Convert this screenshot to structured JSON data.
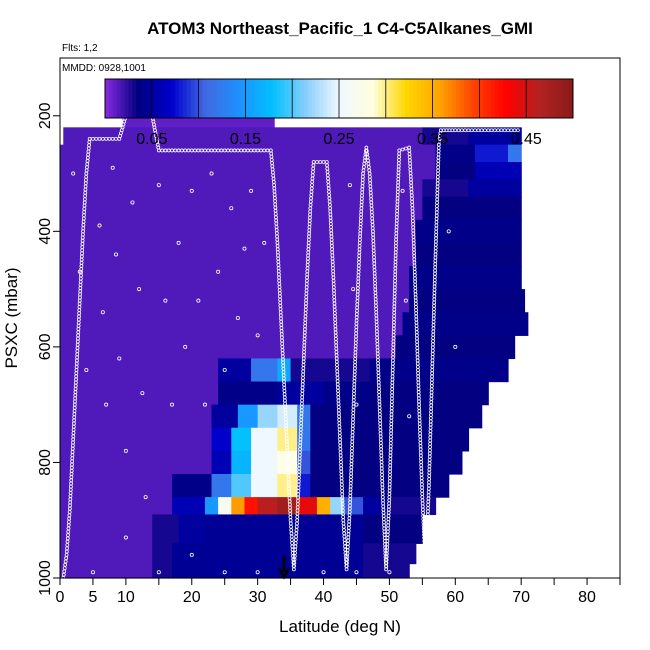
{
  "chart_data": {
    "type": "heatmap",
    "title": "ATOM3 Northeast_Pacific_1 C4-C5Alkanes_GMI",
    "flights_label": "Flts: 1,2",
    "date_label": "MMDD: 0928,1001",
    "xlabel": "Latitude (deg N)",
    "ylabel": "PSXC (mbar)",
    "xlim": [
      0,
      85
    ],
    "ylim": [
      1000,
      100
    ],
    "x_ticks": [
      0,
      5,
      10,
      20,
      30,
      40,
      50,
      60,
      70,
      80
    ],
    "x_minor_ticks": [
      0,
      5,
      10,
      15,
      20,
      25,
      30,
      35,
      40,
      45,
      50,
      55,
      60,
      65,
      70,
      75,
      80,
      85
    ],
    "y_ticks": [
      200,
      400,
      600,
      800,
      1000
    ],
    "colorbar": {
      "vmin": 0,
      "vmax": 0.5,
      "ticks": [
        0.05,
        0.15,
        0.25,
        0.35,
        0.45
      ],
      "tick_labels": [
        "0.05",
        "0.15",
        "0.25",
        "0.35",
        "0.45"
      ],
      "color_stops": [
        "#8a2be2",
        "#000080",
        "#0000cd",
        "#4169e1",
        "#1e90ff",
        "#00bfff",
        "#87cefa",
        "#f0f8ff",
        "#ffffe0",
        "#ffd700",
        "#ffa500",
        "#ff4500",
        "#ff0000",
        "#b22222",
        "#8b1a1a"
      ]
    },
    "background_value": 0.02,
    "marker_latitude": 34,
    "rows": [
      {
        "p": [
          180,
          220
        ],
        "segments": [
          [
            9.5,
            32.5,
            0.01
          ]
        ]
      },
      {
        "p": [
          220,
          250
        ],
        "segments": [
          [
            0.5,
            55,
            0.015
          ],
          [
            55,
            62,
            0.03
          ],
          [
            62,
            70,
            0.05
          ]
        ]
      },
      {
        "p": [
          250,
          280
        ],
        "segments": [
          [
            0,
            57,
            0.015
          ],
          [
            57,
            63,
            0.04
          ],
          [
            63,
            68,
            0.08
          ],
          [
            68,
            70,
            0.12
          ]
        ]
      },
      {
        "p": [
          280,
          310
        ],
        "segments": [
          [
            0,
            57,
            0.015
          ],
          [
            57,
            63,
            0.035
          ],
          [
            63,
            70,
            0.06
          ]
        ]
      },
      {
        "p": [
          310,
          340
        ],
        "segments": [
          [
            0,
            55,
            0.015
          ],
          [
            55,
            62,
            0.03
          ],
          [
            62,
            70,
            0.05
          ]
        ]
      },
      {
        "p": [
          340,
          380
        ],
        "segments": [
          [
            0,
            55,
            0.015
          ],
          [
            55,
            70,
            0.035
          ]
        ]
      },
      {
        "p": [
          380,
          420
        ],
        "segments": [
          [
            0,
            54,
            0.015
          ],
          [
            54,
            70,
            0.04
          ]
        ]
      },
      {
        "p": [
          420,
          460
        ],
        "segments": [
          [
            0,
            54,
            0.015
          ],
          [
            54,
            70,
            0.035
          ]
        ]
      },
      {
        "p": [
          460,
          500
        ],
        "segments": [
          [
            0,
            53,
            0.015
          ],
          [
            53,
            70,
            0.04
          ]
        ]
      },
      {
        "p": [
          500,
          540
        ],
        "segments": [
          [
            0,
            53,
            0.015
          ],
          [
            53,
            70.5,
            0.035
          ]
        ]
      },
      {
        "p": [
          540,
          580
        ],
        "segments": [
          [
            0,
            52,
            0.015
          ],
          [
            52,
            71,
            0.04
          ]
        ]
      },
      {
        "p": [
          580,
          620
        ],
        "segments": [
          [
            0,
            51,
            0.015
          ],
          [
            51,
            69,
            0.035
          ]
        ]
      },
      {
        "p": [
          620,
          660
        ],
        "segments": [
          [
            0,
            24,
            0.015
          ],
          [
            24,
            29,
            0.05
          ],
          [
            29,
            33,
            0.12
          ],
          [
            33,
            35,
            0.16
          ],
          [
            35,
            47,
            0.03
          ],
          [
            47,
            68,
            0.04
          ]
        ]
      },
      {
        "p": [
          660,
          700
        ],
        "segments": [
          [
            0,
            24,
            0.015
          ],
          [
            24,
            33,
            0.04
          ],
          [
            33,
            40,
            0.05
          ],
          [
            40,
            47,
            0.04
          ],
          [
            47,
            65,
            0.035
          ]
        ]
      },
      {
        "p": [
          700,
          740
        ],
        "segments": [
          [
            0,
            23,
            0.015
          ],
          [
            23,
            27,
            0.05
          ],
          [
            27,
            30,
            0.15
          ],
          [
            30,
            33,
            0.22
          ],
          [
            33,
            36,
            0.24
          ],
          [
            36,
            38,
            0.12
          ],
          [
            38,
            64,
            0.035
          ]
        ]
      },
      {
        "p": [
          740,
          780
        ],
        "segments": [
          [
            0,
            23,
            0.015
          ],
          [
            23,
            26,
            0.07
          ],
          [
            26,
            29,
            0.18
          ],
          [
            29,
            33,
            0.25
          ],
          [
            33,
            36,
            0.3
          ],
          [
            36,
            38,
            0.12
          ],
          [
            38,
            62,
            0.035
          ]
        ]
      },
      {
        "p": [
          780,
          820
        ],
        "segments": [
          [
            0,
            23,
            0.015
          ],
          [
            23,
            26,
            0.06
          ],
          [
            26,
            29,
            0.17
          ],
          [
            29,
            33,
            0.25
          ],
          [
            33,
            36,
            0.28
          ],
          [
            36,
            38,
            0.1
          ],
          [
            38,
            61,
            0.035
          ]
        ]
      },
      {
        "p": [
          820,
          860
        ],
        "segments": [
          [
            0,
            17,
            0.015
          ],
          [
            17,
            23,
            0.04
          ],
          [
            23,
            26,
            0.12
          ],
          [
            26,
            29,
            0.2
          ],
          [
            29,
            33,
            0.25
          ],
          [
            33,
            36,
            0.3
          ],
          [
            36,
            38,
            0.08
          ],
          [
            38,
            59,
            0.035
          ]
        ]
      },
      {
        "p": [
          860,
          890
        ],
        "segments": [
          [
            0,
            17,
            0.015
          ],
          [
            17,
            22,
            0.06
          ],
          [
            22,
            24,
            0.15
          ],
          [
            24,
            26,
            0.27
          ],
          [
            26,
            28,
            0.36
          ],
          [
            28,
            30,
            0.42
          ],
          [
            30,
            33,
            0.46
          ],
          [
            33,
            36,
            0.48
          ],
          [
            36,
            39,
            0.44
          ],
          [
            39,
            41,
            0.35
          ],
          [
            41,
            43,
            0.22
          ],
          [
            43,
            46,
            0.1
          ],
          [
            46,
            50,
            0.05
          ],
          [
            50,
            57,
            0.03
          ]
        ]
      },
      {
        "p": [
          890,
          940
        ],
        "segments": [
          [
            0,
            14,
            0.015
          ],
          [
            14,
            18,
            0.03
          ],
          [
            18,
            22,
            0.05
          ],
          [
            22,
            46,
            0.045
          ],
          [
            46,
            55,
            0.035
          ]
        ]
      },
      {
        "p": [
          940,
          975
        ],
        "segments": [
          [
            0,
            14,
            0.015
          ],
          [
            14,
            17,
            0.03
          ],
          [
            17,
            46,
            0.045
          ],
          [
            46,
            54,
            0.03
          ]
        ]
      },
      {
        "p": [
          975,
          1000
        ],
        "segments": [
          [
            0,
            14,
            0.015
          ],
          [
            14,
            17,
            0.03
          ],
          [
            17,
            46,
            0.045
          ],
          [
            46,
            53,
            0.03
          ]
        ]
      }
    ],
    "flight_track": [
      [
        0.5,
        1000
      ],
      [
        1,
        960
      ],
      [
        1.5,
        880
      ],
      [
        2,
        760
      ],
      [
        2.5,
        640
      ],
      [
        3,
        520
      ],
      [
        3.5,
        400
      ],
      [
        4,
        300
      ],
      [
        4.5,
        240
      ],
      [
        8,
        240
      ],
      [
        9,
        240
      ],
      [
        9.5,
        220
      ],
      [
        10,
        200
      ],
      [
        12,
        200
      ],
      [
        14,
        200
      ],
      [
        14.5,
        230
      ],
      [
        15,
        260
      ],
      [
        20,
        260
      ],
      [
        25,
        260
      ],
      [
        31,
        260
      ],
      [
        32,
        260
      ],
      [
        32.5,
        320
      ],
      [
        33,
        420
      ],
      [
        33.5,
        540
      ],
      [
        34,
        660
      ],
      [
        34.5,
        780
      ],
      [
        35,
        900
      ],
      [
        35.5,
        985
      ],
      [
        36,
        900
      ],
      [
        36.5,
        760
      ],
      [
        37,
        620
      ],
      [
        37.5,
        480
      ],
      [
        38,
        360
      ],
      [
        38.5,
        280
      ],
      [
        40.5,
        280
      ],
      [
        41,
        360
      ],
      [
        41.5,
        480
      ],
      [
        42,
        620
      ],
      [
        42.5,
        760
      ],
      [
        43,
        900
      ],
      [
        43.5,
        985
      ],
      [
        44,
        880
      ],
      [
        44.5,
        720
      ],
      [
        45,
        560
      ],
      [
        45.5,
        420
      ],
      [
        46,
        300
      ],
      [
        46.5,
        255
      ],
      [
        47,
        300
      ],
      [
        47.5,
        400
      ],
      [
        48,
        540
      ],
      [
        48.5,
        700
      ],
      [
        49,
        860
      ],
      [
        49.5,
        985
      ],
      [
        50,
        860
      ],
      [
        50.5,
        640
      ],
      [
        51,
        420
      ],
      [
        51.5,
        260
      ],
      [
        53,
        255
      ],
      [
        53.5,
        360
      ],
      [
        54,
        520
      ],
      [
        54.5,
        700
      ],
      [
        55,
        860
      ],
      [
        55.5,
        985
      ],
      [
        56,
        840
      ],
      [
        56.5,
        640
      ],
      [
        57,
        440
      ],
      [
        57.5,
        250
      ],
      [
        57.8,
        225
      ],
      [
        60,
        225
      ],
      [
        65,
        225
      ],
      [
        70,
        225
      ]
    ],
    "segments_scatter": [
      [
        2,
        300
      ],
      [
        3,
        470
      ],
      [
        4,
        640
      ],
      [
        6,
        390
      ],
      [
        6.5,
        540
      ],
      [
        7,
        700
      ],
      [
        8,
        290
      ],
      [
        8.5,
        440
      ],
      [
        9,
        620
      ],
      [
        10,
        780
      ],
      [
        11,
        350
      ],
      [
        12,
        500
      ],
      [
        12.5,
        680
      ],
      [
        13,
        860
      ],
      [
        15,
        320
      ],
      [
        16,
        520
      ],
      [
        17,
        700
      ],
      [
        18,
        420
      ],
      [
        19,
        600
      ],
      [
        20,
        330
      ],
      [
        21,
        520
      ],
      [
        22,
        700
      ],
      [
        23,
        300
      ],
      [
        24,
        470
      ],
      [
        25,
        640
      ],
      [
        26,
        360
      ],
      [
        27,
        550
      ],
      [
        28,
        430
      ],
      [
        29,
        330
      ],
      [
        30,
        580
      ],
      [
        31,
        420
      ],
      [
        44,
        320
      ],
      [
        44.5,
        500
      ],
      [
        45,
        700
      ],
      [
        52,
        330
      ],
      [
        52.5,
        520
      ],
      [
        53,
        720
      ],
      [
        59,
        400
      ],
      [
        60,
        600
      ],
      [
        5,
        990
      ],
      [
        10,
        930
      ],
      [
        15,
        990
      ],
      [
        20,
        960
      ],
      [
        25,
        990
      ],
      [
        30,
        990
      ],
      [
        40,
        990
      ],
      [
        45,
        990
      ],
      [
        50,
        990
      ]
    ]
  }
}
